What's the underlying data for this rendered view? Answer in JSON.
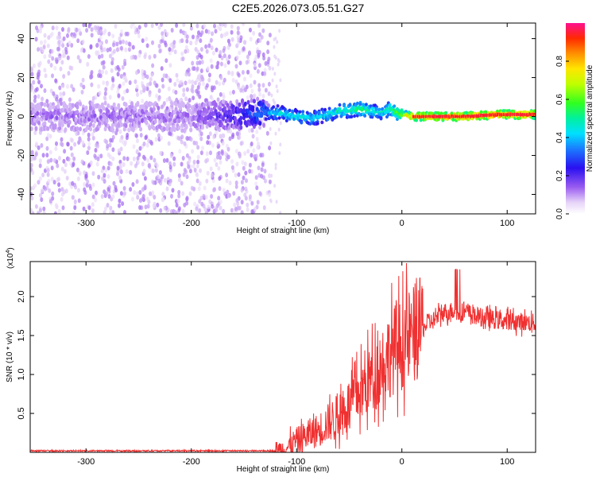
{
  "title": "C2E5.2026.073.05.51.G27",
  "chart_data": [
    {
      "type": "heatmap",
      "xlabel": "Height of straight line (km)",
      "ylabel": "Frequency (Hz)",
      "xlim": [
        -353,
        127
      ],
      "ylim": [
        -50,
        48
      ],
      "xticks": [
        -300,
        -200,
        -100,
        0,
        100
      ],
      "yticks": [
        -40,
        -20,
        0,
        20,
        40
      ],
      "colorbar": {
        "label": "Normalized spectral amplitude",
        "range": [
          0,
          1
        ],
        "ticks": [
          0.0,
          0.2,
          0.4,
          0.6,
          0.8
        ],
        "tick_labels": [
          "0.0",
          "0.2",
          "0.4",
          "0.6",
          "0.8"
        ]
      },
      "ridge": {
        "description": "doppler track vs height",
        "x": [
          -353,
          -300,
          -250,
          -200,
          -160,
          -130,
          -115,
          -100,
          -85,
          -70,
          -60,
          -50,
          -40,
          -30,
          -20,
          -10,
          -5,
          0,
          10,
          30,
          60,
          90,
          127
        ],
        "freq": [
          0,
          0,
          0,
          0,
          1,
          2,
          2,
          0,
          -1,
          1,
          3,
          3,
          4,
          3,
          2,
          4,
          2,
          1,
          0,
          0,
          0,
          1,
          1
        ],
        "amplitude": [
          0.12,
          0.12,
          0.12,
          0.12,
          0.22,
          0.35,
          0.45,
          0.45,
          0.42,
          0.45,
          0.5,
          0.5,
          0.55,
          0.5,
          0.45,
          0.55,
          0.6,
          0.65,
          0.85,
          0.95,
          0.95,
          0.95,
          0.95
        ]
      }
    },
    {
      "type": "line",
      "xlabel": "Height of straight line (km)",
      "ylabel": "SNR (10 * v/v)",
      "scale_label": "(x10",
      "scale_exp": "4",
      "scale_close": ")",
      "xlim": [
        -353,
        127
      ],
      "ylim": [
        0,
        2.45
      ],
      "xticks": [
        -300,
        -200,
        -100,
        0,
        100
      ],
      "yticks": [
        0.5,
        1.0,
        1.5,
        2.0
      ],
      "ytick_labels": [
        "0.5",
        "1.0",
        "1.5",
        "2.0"
      ],
      "series": [
        {
          "name": "SNR",
          "color": "#f03030",
          "x": [
            -353,
            -300,
            -200,
            -120,
            -110,
            -100,
            -90,
            -80,
            -70,
            -60,
            -50,
            -40,
            -30,
            -20,
            -10,
            0,
            10,
            20,
            30,
            40,
            50,
            60,
            70,
            80,
            90,
            100,
            110,
            127
          ],
          "y": [
            0.02,
            0.02,
            0.02,
            0.02,
            0.05,
            0.15,
            0.22,
            0.28,
            0.38,
            0.48,
            0.62,
            0.78,
            0.95,
            1.12,
            1.3,
            1.4,
            1.5,
            1.6,
            1.7,
            1.8,
            1.82,
            1.8,
            1.75,
            1.72,
            1.7,
            1.69,
            1.68,
            1.66
          ]
        }
      ]
    }
  ]
}
